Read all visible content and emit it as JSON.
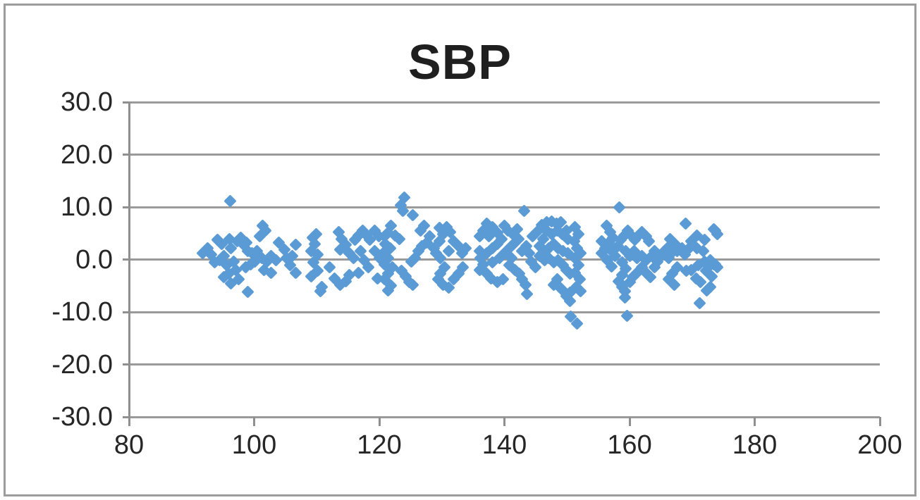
{
  "chart_data": {
    "type": "scatter",
    "title": "SBP",
    "xlabel": "",
    "ylabel": "",
    "xlim": [
      80,
      200
    ],
    "ylim": [
      -30,
      30
    ],
    "x_tick_values": [
      80,
      100,
      120,
      140,
      160,
      180,
      200
    ],
    "x_tick_labels": [
      "80",
      "100",
      "120",
      "140",
      "160",
      "180",
      "200"
    ],
    "y_tick_values": [
      30,
      20,
      10,
      0,
      -10,
      -20,
      -30
    ],
    "y_tick_labels": [
      "30.0",
      "20.0",
      "10.0",
      "0.0",
      "-10.0",
      "-20.0",
      "-30.0"
    ],
    "grid": "horizontal",
    "legend": "none",
    "colors": {
      "marker": "#5B9BD5",
      "gridline": "#9a9a9a",
      "axis": "#8f8f8f",
      "text": "#262626",
      "frame_border": "#9c9c9c"
    },
    "series": [
      {
        "name": "SBP",
        "marker": "diamond",
        "points": [
          [
            96.2,
            11.1
          ],
          [
            94.1,
            3.7
          ],
          [
            92.6,
            2.1
          ],
          [
            91.8,
            1.2
          ],
          [
            93.1,
            1.0
          ],
          [
            94.8,
            3.0
          ],
          [
            96.0,
            3.9
          ],
          [
            96.3,
            2.1
          ],
          [
            95.2,
            0.7
          ],
          [
            94.5,
            -0.2
          ],
          [
            93.7,
            -0.6
          ],
          [
            95.6,
            -1.1
          ],
          [
            96.7,
            -0.4
          ],
          [
            97.3,
            3.5
          ],
          [
            97.9,
            4.2
          ],
          [
            98.2,
            3.0
          ],
          [
            98.8,
            3.2
          ],
          [
            99.0,
            1.6
          ],
          [
            99.7,
            1.2
          ],
          [
            100.5,
            1.6
          ],
          [
            101.4,
            6.4
          ],
          [
            101.8,
            5.5
          ],
          [
            100.9,
            4.4
          ],
          [
            103.9,
            3.2
          ],
          [
            104.8,
            1.9
          ],
          [
            102.7,
            0.7
          ],
          [
            101.2,
            0.3
          ],
          [
            102.0,
            -0.4
          ],
          [
            100.1,
            -0.4
          ],
          [
            99.4,
            -0.9
          ],
          [
            98.6,
            -1.5
          ],
          [
            97.1,
            -2.0
          ],
          [
            95.9,
            -2.7
          ],
          [
            95.2,
            -3.4
          ],
          [
            97.5,
            -3.8
          ],
          [
            96.3,
            -4.5
          ],
          [
            99.0,
            -6.2
          ],
          [
            102.7,
            -2.5
          ],
          [
            101.6,
            -2.0
          ],
          [
            103.5,
            -0.2
          ],
          [
            105.2,
            0.3
          ],
          [
            106.7,
            2.8
          ],
          [
            106.1,
            0.7
          ],
          [
            105.8,
            -1.1
          ],
          [
            106.7,
            -2.5
          ],
          [
            109.3,
            4.2
          ],
          [
            109.9,
            4.8
          ],
          [
            109.7,
            3.0
          ],
          [
            109.1,
            1.6
          ],
          [
            110.1,
            1.0
          ],
          [
            109.5,
            -0.6
          ],
          [
            110.1,
            -2.2
          ],
          [
            109.1,
            -3.2
          ],
          [
            110.8,
            -5.2
          ],
          [
            110.6,
            -6.1
          ],
          [
            113.5,
            5.3
          ],
          [
            114.0,
            3.9
          ],
          [
            114.6,
            2.8
          ],
          [
            113.8,
            1.9
          ],
          [
            112.0,
            -1.5
          ],
          [
            112.9,
            -3.6
          ],
          [
            113.7,
            -4.8
          ],
          [
            116.1,
            3.7
          ],
          [
            116.7,
            4.6
          ],
          [
            117.4,
            5.5
          ],
          [
            118.0,
            4.6
          ],
          [
            118.5,
            3.7
          ],
          [
            119.3,
            5.5
          ],
          [
            119.9,
            4.4
          ],
          [
            115.2,
            1.2
          ],
          [
            115.9,
            0.3
          ],
          [
            117.0,
            1.6
          ],
          [
            117.6,
            -0.2
          ],
          [
            118.3,
            -1.5
          ],
          [
            116.7,
            -2.5
          ],
          [
            115.2,
            -2.9
          ],
          [
            114.6,
            -4.1
          ],
          [
            119.3,
            1.6
          ],
          [
            120.1,
            0.3
          ],
          [
            119.7,
            -3.6
          ],
          [
            124.0,
            11.8
          ],
          [
            123.4,
            10.4
          ],
          [
            123.8,
            9.2
          ],
          [
            125.3,
            8.4
          ],
          [
            121.9,
            6.4
          ],
          [
            121.4,
            5.1
          ],
          [
            120.8,
            4.4
          ],
          [
            122.5,
            4.6
          ],
          [
            123.2,
            3.9
          ],
          [
            121.0,
            3.0
          ],
          [
            121.7,
            2.1
          ],
          [
            120.6,
            1.2
          ],
          [
            121.4,
            0.3
          ],
          [
            120.8,
            -0.9
          ],
          [
            122.1,
            -1.5
          ],
          [
            121.4,
            -2.7
          ],
          [
            120.8,
            -3.8
          ],
          [
            121.9,
            -5.0
          ],
          [
            121.4,
            -5.9
          ],
          [
            123.6,
            -2.2
          ],
          [
            124.2,
            -3.2
          ],
          [
            124.8,
            -4.3
          ],
          [
            125.3,
            -4.8
          ],
          [
            126.3,
            1.6
          ],
          [
            126.8,
            2.6
          ],
          [
            126.6,
            5.5
          ],
          [
            127.2,
            6.4
          ],
          [
            128.1,
            4.4
          ],
          [
            127.6,
            3.2
          ],
          [
            128.7,
            2.1
          ],
          [
            125.7,
            0.3
          ],
          [
            125.1,
            -0.4
          ],
          [
            129.6,
            6.0
          ],
          [
            130.2,
            4.8
          ],
          [
            129.6,
            3.5
          ],
          [
            129.1,
            1.2
          ],
          [
            129.8,
            0.3
          ],
          [
            130.8,
            6.2
          ],
          [
            131.3,
            5.3
          ],
          [
            131.9,
            3.5
          ],
          [
            132.7,
            2.6
          ],
          [
            131.1,
            1.6
          ],
          [
            130.4,
            -1.5
          ],
          [
            129.8,
            -2.7
          ],
          [
            129.4,
            -3.8
          ],
          [
            130.2,
            -4.8
          ],
          [
            131.1,
            -5.4
          ],
          [
            131.9,
            -3.8
          ],
          [
            132.7,
            -2.7
          ],
          [
            133.4,
            -1.5
          ],
          [
            133.2,
            1.2
          ],
          [
            133.8,
            2.1
          ],
          [
            143.2,
            9.2
          ],
          [
            137.2,
            6.9
          ],
          [
            138.1,
            6.2
          ],
          [
            136.6,
            5.5
          ],
          [
            136.0,
            4.4
          ],
          [
            137.5,
            4.4
          ],
          [
            138.9,
            5.1
          ],
          [
            140.0,
            6.4
          ],
          [
            140.6,
            5.5
          ],
          [
            139.6,
            3.9
          ],
          [
            138.9,
            3.0
          ],
          [
            138.1,
            2.1
          ],
          [
            137.2,
            1.2
          ],
          [
            136.2,
            0.3
          ],
          [
            136.0,
            1.6
          ],
          [
            136.6,
            -0.9
          ],
          [
            136.0,
            -2.0
          ],
          [
            137.2,
            -2.7
          ],
          [
            137.9,
            -3.6
          ],
          [
            138.9,
            -4.3
          ],
          [
            139.8,
            -3.8
          ],
          [
            138.1,
            -0.6
          ],
          [
            139.2,
            0.3
          ],
          [
            140.0,
            1.2
          ],
          [
            140.8,
            2.1
          ],
          [
            141.5,
            3.0
          ],
          [
            141.3,
            4.8
          ],
          [
            142.0,
            5.8
          ],
          [
            142.2,
            3.9
          ],
          [
            141.1,
            0.3
          ],
          [
            140.8,
            -1.1
          ],
          [
            141.7,
            -2.0
          ],
          [
            142.4,
            -2.7
          ],
          [
            142.8,
            -3.8
          ],
          [
            143.4,
            -4.8
          ],
          [
            143.6,
            -6.6
          ],
          [
            142.8,
            1.6
          ],
          [
            143.5,
            2.6
          ],
          [
            143.9,
            1.2
          ],
          [
            144.3,
            -0.4
          ],
          [
            145.0,
            -1.5
          ],
          [
            145.2,
            5.3
          ],
          [
            144.5,
            4.4
          ],
          [
            146.0,
            6.6
          ],
          [
            146.8,
            7.1
          ],
          [
            147.5,
            7.3
          ],
          [
            148.3,
            6.9
          ],
          [
            149.0,
            7.1
          ],
          [
            146.8,
            5.5
          ],
          [
            147.5,
            4.8
          ],
          [
            148.4,
            5.5
          ],
          [
            149.2,
            4.8
          ],
          [
            149.9,
            5.5
          ],
          [
            150.1,
            3.9
          ],
          [
            146.2,
            3.9
          ],
          [
            145.6,
            2.6
          ],
          [
            146.4,
            1.6
          ],
          [
            147.1,
            2.1
          ],
          [
            147.9,
            3.0
          ],
          [
            148.6,
            2.1
          ],
          [
            149.4,
            1.6
          ],
          [
            150.1,
            1.2
          ],
          [
            145.6,
            0.7
          ],
          [
            146.4,
            -0.2
          ],
          [
            147.1,
            0.3
          ],
          [
            147.9,
            -0.6
          ],
          [
            148.6,
            -0.2
          ],
          [
            149.4,
            -1.1
          ],
          [
            149.9,
            -2.0
          ],
          [
            150.5,
            -2.7
          ],
          [
            148.4,
            -3.8
          ],
          [
            147.9,
            -4.8
          ],
          [
            148.8,
            -5.2
          ],
          [
            149.4,
            -5.9
          ],
          [
            149.9,
            -7.0
          ],
          [
            150.5,
            -7.9
          ],
          [
            150.5,
            -6.3
          ],
          [
            150.6,
            -10.9
          ],
          [
            151.6,
            -12.2
          ],
          [
            159.6,
            -10.7
          ],
          [
            159.3,
            -7.3
          ],
          [
            151.3,
            6.2
          ],
          [
            151.8,
            4.8
          ],
          [
            151.1,
            3.5
          ],
          [
            151.6,
            2.1
          ],
          [
            152.2,
            1.2
          ],
          [
            151.3,
            0.3
          ],
          [
            151.8,
            -1.1
          ],
          [
            151.3,
            -2.5
          ],
          [
            152.0,
            -3.8
          ],
          [
            151.5,
            -5.2
          ],
          [
            152.2,
            -6.1
          ],
          [
            158.4,
            9.9
          ],
          [
            156.3,
            6.4
          ],
          [
            156.9,
            5.3
          ],
          [
            157.4,
            4.2
          ],
          [
            156.7,
            3.2
          ],
          [
            156.1,
            2.1
          ],
          [
            155.6,
            1.2
          ],
          [
            157.1,
            1.6
          ],
          [
            157.7,
            0.7
          ],
          [
            156.5,
            -0.2
          ],
          [
            157.1,
            -1.3
          ],
          [
            158.1,
            2.6
          ],
          [
            158.6,
            3.7
          ],
          [
            159.2,
            4.6
          ],
          [
            159.7,
            5.5
          ],
          [
            160.3,
            4.6
          ],
          [
            160.9,
            3.7
          ],
          [
            161.4,
            4.6
          ],
          [
            162.0,
            5.3
          ],
          [
            162.6,
            4.4
          ],
          [
            163.1,
            3.5
          ],
          [
            159.4,
            1.6
          ],
          [
            160.1,
            0.7
          ],
          [
            160.7,
            1.6
          ],
          [
            161.2,
            0.3
          ],
          [
            162.0,
            0.7
          ],
          [
            162.7,
            -0.2
          ],
          [
            163.5,
            0.7
          ],
          [
            164.0,
            1.6
          ],
          [
            158.8,
            -0.6
          ],
          [
            159.4,
            -1.8
          ],
          [
            158.8,
            -2.9
          ],
          [
            158.2,
            -4.1
          ],
          [
            158.8,
            -5.2
          ],
          [
            160.0,
            -4.3
          ],
          [
            160.5,
            -3.4
          ],
          [
            161.2,
            -2.5
          ],
          [
            162.0,
            -1.5
          ],
          [
            162.7,
            -2.5
          ],
          [
            163.3,
            -3.4
          ],
          [
            164.0,
            -1.5
          ],
          [
            164.4,
            -0.4
          ],
          [
            165.0,
            0.7
          ],
          [
            165.6,
            1.6
          ],
          [
            155.6,
            3.5
          ],
          [
            159.3,
            -6.0
          ],
          [
            169.0,
            6.9
          ],
          [
            173.5,
            5.8
          ],
          [
            174.0,
            4.8
          ],
          [
            170.8,
            4.6
          ],
          [
            169.9,
            3.5
          ],
          [
            166.5,
            3.9
          ],
          [
            167.3,
            3.0
          ],
          [
            166.0,
            2.1
          ],
          [
            166.7,
            1.2
          ],
          [
            166.2,
            0.3
          ],
          [
            167.6,
            1.6
          ],
          [
            168.4,
            2.1
          ],
          [
            168.8,
            1.0
          ],
          [
            169.3,
            1.9
          ],
          [
            170.8,
            2.1
          ],
          [
            172.0,
            -0.4
          ],
          [
            172.9,
            -0.2
          ],
          [
            173.5,
            -0.9
          ],
          [
            174.0,
            -1.5
          ],
          [
            171.0,
            -1.1
          ],
          [
            169.9,
            -2.0
          ],
          [
            169.1,
            -2.2
          ],
          [
            167.6,
            -1.5
          ],
          [
            166.8,
            -2.7
          ],
          [
            166.3,
            -3.8
          ],
          [
            167.1,
            -4.8
          ],
          [
            170.6,
            -3.6
          ],
          [
            171.3,
            -4.3
          ],
          [
            172.3,
            -5.9
          ],
          [
            171.2,
            -8.3
          ],
          [
            171.8,
            1.6
          ],
          [
            173.7,
            5.5
          ],
          [
            172.0,
            3.7
          ],
          [
            173.7,
            -0.9
          ],
          [
            172.7,
            -1.3
          ],
          [
            172.2,
            -2.2
          ],
          [
            173.1,
            -3.2
          ],
          [
            172.9,
            -5.2
          ]
        ]
      }
    ]
  }
}
